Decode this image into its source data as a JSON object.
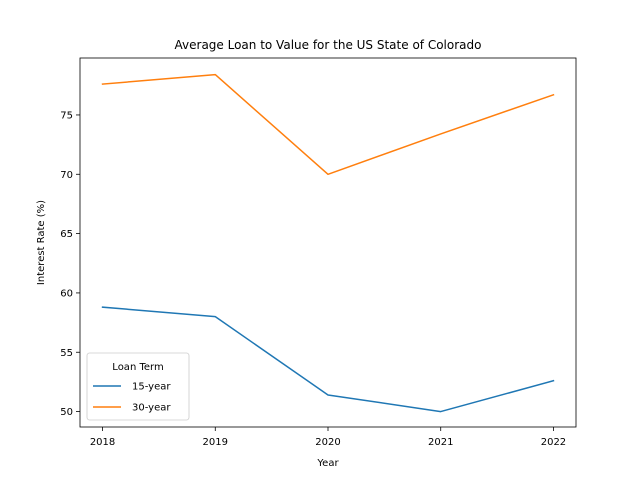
{
  "chart_data": {
    "type": "line",
    "title": "Average Loan to Value for the US State of Colorado",
    "xlabel": "Year",
    "ylabel": "Interest Rate (%)",
    "x": [
      2018,
      2019,
      2020,
      2021,
      2022
    ],
    "xlim": [
      2017.8,
      2022.2
    ],
    "ylim": [
      48.7,
      79.8
    ],
    "yticks": [
      50,
      55,
      60,
      65,
      70,
      75
    ],
    "grid": false,
    "legend": {
      "title": "Loan Term",
      "placement": "lower-left"
    },
    "series": [
      {
        "name": "15-year",
        "color": "#1f77b4",
        "values": [
          58.8,
          58.0,
          51.4,
          50.0,
          52.6
        ]
      },
      {
        "name": "30-year",
        "color": "#ff7f0e",
        "values": [
          77.6,
          78.4,
          70.0,
          73.4,
          76.7
        ]
      }
    ]
  }
}
